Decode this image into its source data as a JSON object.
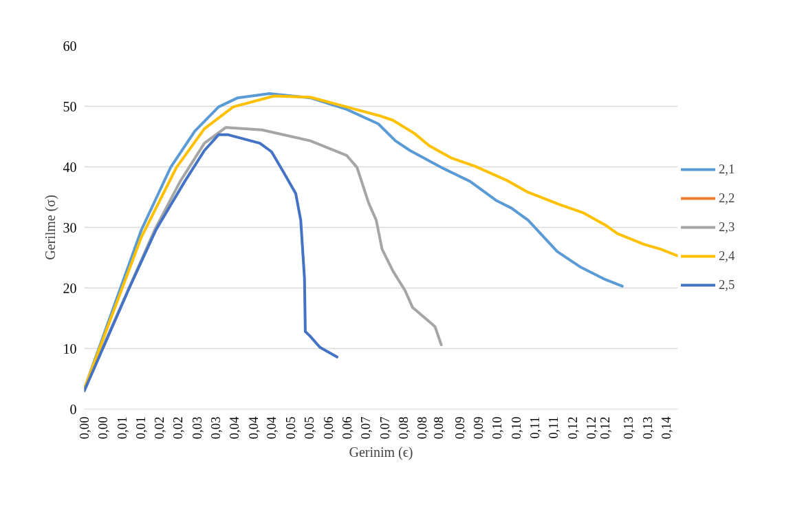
{
  "chart_data": {
    "type": "line",
    "xlabel": "Gerinim (ϵ)",
    "ylabel": "Gerilme (σ)",
    "xlim": [
      0,
      0.1423
    ],
    "ylim": [
      0,
      60
    ],
    "yticks": [
      0,
      10,
      20,
      30,
      40,
      50,
      60
    ],
    "xticks": [
      {
        "value": 0,
        "label": "0,00"
      },
      {
        "value": 0.0045,
        "label": "0,00"
      },
      {
        "value": 0.009,
        "label": "0,01"
      },
      {
        "value": 0.0135,
        "label": "0,01"
      },
      {
        "value": 0.018,
        "label": "0,02"
      },
      {
        "value": 0.0225,
        "label": "0,02"
      },
      {
        "value": 0.027,
        "label": "0,03"
      },
      {
        "value": 0.0315,
        "label": "0,03"
      },
      {
        "value": 0.036,
        "label": "0,04"
      },
      {
        "value": 0.0405,
        "label": "0,04"
      },
      {
        "value": 0.0449,
        "label": "0,04"
      },
      {
        "value": 0.0495,
        "label": "0,05"
      },
      {
        "value": 0.054,
        "label": "0,05"
      },
      {
        "value": 0.0585,
        "label": "0,06"
      },
      {
        "value": 0.063,
        "label": "0,06"
      },
      {
        "value": 0.0675,
        "label": "0,07"
      },
      {
        "value": 0.072,
        "label": "0,07"
      },
      {
        "value": 0.0765,
        "label": "0,08"
      },
      {
        "value": 0.081,
        "label": "0,08"
      },
      {
        "value": 0.0849,
        "label": "0,08"
      },
      {
        "value": 0.09,
        "label": "0,09"
      },
      {
        "value": 0.0945,
        "label": "0,09"
      },
      {
        "value": 0.099,
        "label": "0,10"
      },
      {
        "value": 0.1035,
        "label": "0,10"
      },
      {
        "value": 0.108,
        "label": "0,11"
      },
      {
        "value": 0.1125,
        "label": "0,11"
      },
      {
        "value": 0.117,
        "label": "0,12"
      },
      {
        "value": 0.1215,
        "label": "0,12"
      },
      {
        "value": 0.1249,
        "label": "0,12"
      },
      {
        "value": 0.1305,
        "label": "0,13"
      },
      {
        "value": 0.135,
        "label": "0,13"
      },
      {
        "value": 0.1395,
        "label": "0,14"
      }
    ],
    "grid": "y",
    "legend": "right",
    "line_style": "solid",
    "marker": "none",
    "series": [
      {
        "name": "2,1",
        "color": "#5b9bd5",
        "x": [
          0,
          0.0137,
          0.0207,
          0.0265,
          0.0322,
          0.0368,
          0.0444,
          0.0542,
          0.0629,
          0.0705,
          0.0746,
          0.0781,
          0.0862,
          0.0925,
          0.0989,
          0.1024,
          0.1064,
          0.1134,
          0.1191,
          0.1249,
          0.129
        ],
        "values": [
          3.3,
          29.6,
          39.9,
          45.9,
          49.9,
          51.4,
          52.1,
          51.4,
          49.5,
          47.1,
          44.3,
          42.7,
          39.7,
          37.6,
          34.4,
          33.2,
          31.2,
          26.0,
          23.4,
          21.4,
          20.3
        ]
      },
      {
        "name": "2,2",
        "color": "#ed7d31"
      },
      {
        "name": "2,3",
        "color": "#a5a5a5",
        "x": [
          0,
          0.0169,
          0.023,
          0.0288,
          0.0339,
          0.0426,
          0.0542,
          0.0629,
          0.0654,
          0.0682,
          0.07,
          0.0714,
          0.074,
          0.0769,
          0.0787,
          0.0821,
          0.0841,
          0.0856
        ],
        "values": [
          3.3,
          29.6,
          37.6,
          43.9,
          46.5,
          46.1,
          44.3,
          41.9,
          39.9,
          34.0,
          31.2,
          26.4,
          22.8,
          19.6,
          16.8,
          14.8,
          13.6,
          10.6
        ]
      },
      {
        "name": "2,4",
        "color": "#ffc000",
        "x": [
          0,
          0.0137,
          0.0221,
          0.0288,
          0.0357,
          0.0455,
          0.0542,
          0.0705,
          0.074,
          0.0792,
          0.0827,
          0.0879,
          0.0937,
          0.1012,
          0.1064,
          0.1139,
          0.1197,
          0.1249,
          0.1278,
          0.1342,
          0.1382,
          0.1423
        ],
        "values": [
          3.3,
          28.4,
          39.9,
          46.3,
          49.9,
          51.7,
          51.5,
          48.5,
          47.7,
          45.5,
          43.5,
          41.5,
          40.1,
          37.8,
          35.8,
          33.8,
          32.4,
          30.4,
          29.0,
          27.2,
          26.4,
          25.3
        ]
      },
      {
        "name": "2,5",
        "color": "#4472c4",
        "x": [
          0,
          0.0108,
          0.0172,
          0.0241,
          0.0288,
          0.0322,
          0.0345,
          0.0421,
          0.0449,
          0.0478,
          0.0507,
          0.0519,
          0.0528,
          0.053,
          0.0542,
          0.0565,
          0.0606
        ],
        "values": [
          3.0,
          20.0,
          29.6,
          37.6,
          42.7,
          45.3,
          45.3,
          43.9,
          42.5,
          39.1,
          35.6,
          31.2,
          21.6,
          12.8,
          12.0,
          10.2,
          8.6
        ]
      }
    ]
  }
}
